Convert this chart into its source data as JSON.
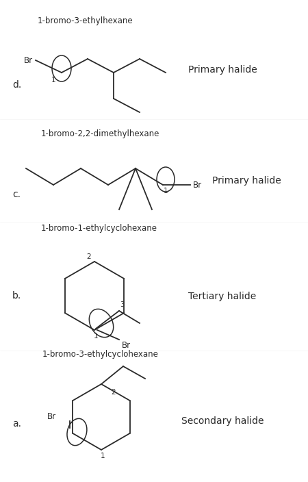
{
  "bg_color": "#ffffff",
  "text_color": "#2a2a2a",
  "labels": {
    "a": "a.",
    "b": "b.",
    "c": "c.",
    "d": "d."
  },
  "names": {
    "a": "1-bromo-3-ethylcyclohexane",
    "b": "1-bromo-1-ethylcyclohexane",
    "c": "1-bromo-2,2-dimethylhexane",
    "d": "1-bromo-3-ethylhexane"
  },
  "halide_types": {
    "a": "Secondary halide",
    "b": "Tertiary halide",
    "c": "Primary halide",
    "d": "Primary halide"
  },
  "figsize": [
    4.5,
    7.04
  ],
  "dpi": 100
}
